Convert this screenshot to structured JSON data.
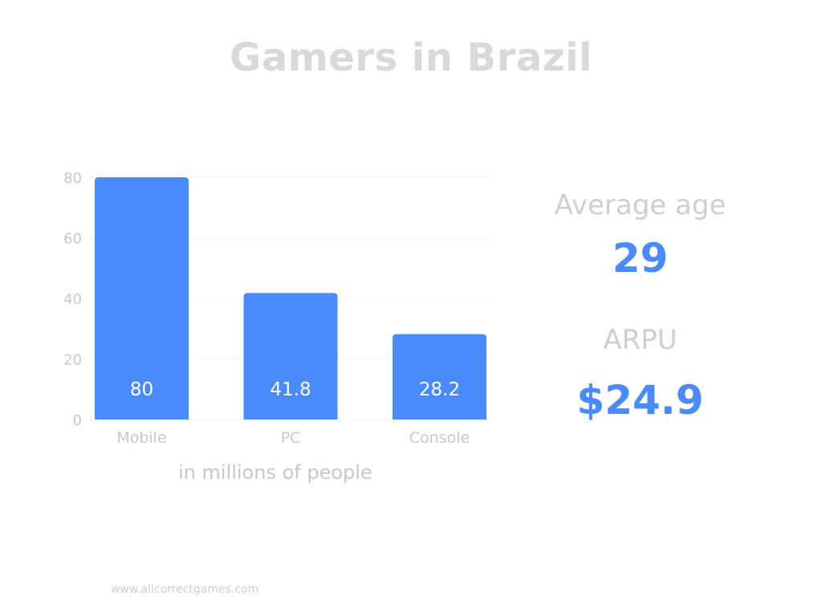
{
  "title": "Gamers in Brazil",
  "colors": {
    "bar": "#4a8bfc",
    "bar_label": "#ffffff",
    "stat_value": "#4a8bfc",
    "muted_text": "#c8c8c8",
    "title": "#d9d9d9"
  },
  "chart_data": {
    "type": "bar",
    "categories": [
      "Mobile",
      "PC",
      "Console"
    ],
    "values": [
      80,
      41.8,
      28.2
    ],
    "data_labels": [
      "80",
      "41.8",
      "28.2"
    ],
    "ylim": [
      0,
      80
    ],
    "yticks": [
      0,
      20,
      40,
      60,
      80
    ],
    "xlabel": "in millions of people",
    "ylabel": "",
    "grid": true
  },
  "stats": {
    "average_age_label": "Average age",
    "average_age_value": "29",
    "arpu_label": "ARPU",
    "arpu_value": "$24.9"
  },
  "footer": {
    "website": "www.allcorrectgames.com"
  }
}
